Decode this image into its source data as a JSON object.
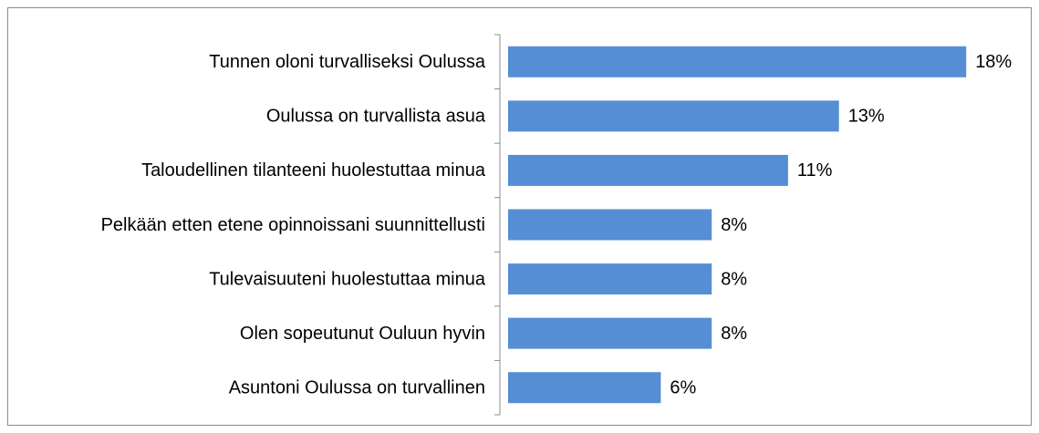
{
  "chart_data": {
    "type": "bar",
    "orientation": "horizontal",
    "categories": [
      "Tunnen oloni turvalliseksi Oulussa",
      "Oulussa on turvallista asua",
      "Taloudellinen tilanteeni huolestuttaa minua",
      "Pelkään etten etene opinnoissani suunnittellusti",
      "Tulevaisuuteni huolestuttaa minua",
      "Olen sopeutunut Ouluun hyvin",
      "Asuntoni Oulussa on turvallinen"
    ],
    "values": [
      18,
      13,
      11,
      8,
      8,
      8,
      6
    ],
    "value_labels": [
      "18%",
      "13%",
      "11%",
      "8%",
      "8%",
      "8%",
      "6%"
    ],
    "color": "#558ed5"
  }
}
